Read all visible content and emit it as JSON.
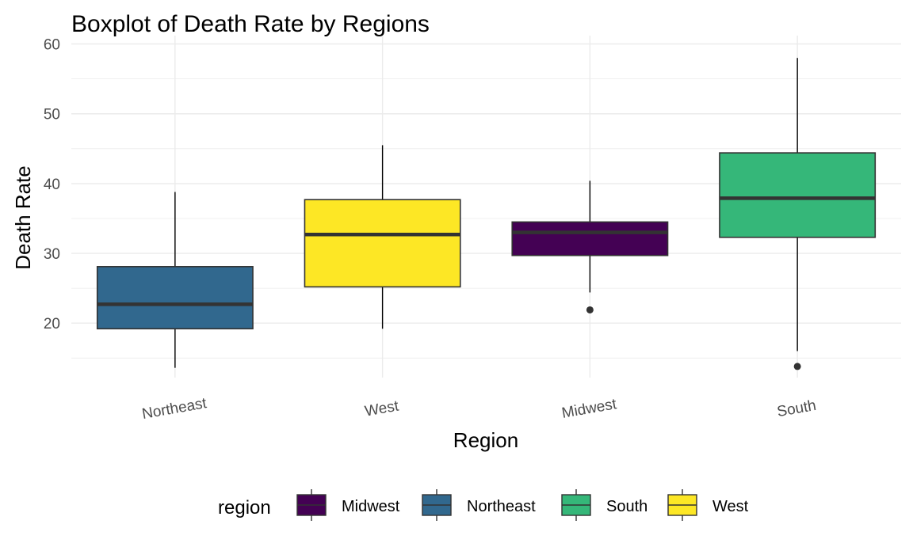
{
  "chart_data": {
    "type": "boxplot",
    "title": "Boxplot of Death Rate by Regions",
    "xlabel": "Region",
    "ylabel": "Death Rate",
    "ylim": [
      12.2,
      61.2
    ],
    "yticks": [
      20,
      30,
      40,
      50,
      60
    ],
    "grid": true,
    "categories": [
      "Northeast",
      "West",
      "Midwest",
      "South"
    ],
    "boxes": [
      {
        "category": "Northeast",
        "group": "Northeast",
        "whisker_low": 13.6,
        "q1": 19.2,
        "median": 22.7,
        "q3": 28.1,
        "whisker_high": 38.8,
        "outliers": []
      },
      {
        "category": "West",
        "group": "West",
        "whisker_low": 19.2,
        "q1": 25.2,
        "median": 32.7,
        "q3": 37.7,
        "whisker_high": 45.5,
        "outliers": []
      },
      {
        "category": "Midwest",
        "group": "Midwest",
        "whisker_low": 24.4,
        "q1": 29.7,
        "median": 33.0,
        "q3": 34.5,
        "whisker_high": 40.4,
        "outliers": [
          21.9
        ]
      },
      {
        "category": "South",
        "group": "South",
        "whisker_low": 16.0,
        "q1": 32.3,
        "median": 37.9,
        "q3": 44.4,
        "whisker_high": 58.0,
        "outliers": [
          13.8
        ]
      }
    ],
    "legend": {
      "title": "region",
      "position": "bottom",
      "items": [
        {
          "label": "Midwest",
          "color": "#440154"
        },
        {
          "label": "Northeast",
          "color": "#31688e"
        },
        {
          "label": "South",
          "color": "#35b779"
        },
        {
          "label": "West",
          "color": "#fde725"
        }
      ]
    }
  }
}
